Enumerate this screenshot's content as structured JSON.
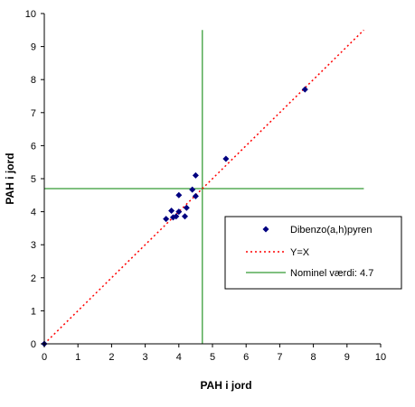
{
  "chart_data": {
    "type": "scatter",
    "title": "",
    "xlabel": "PAH i jord",
    "ylabel": "PAH i jord",
    "xlim": [
      0,
      10
    ],
    "ylim": [
      0,
      10
    ],
    "xticks": [
      "0",
      "1",
      "2",
      "3",
      "4",
      "5",
      "6",
      "7",
      "8",
      "9",
      "10"
    ],
    "yticks": [
      "0",
      "1",
      "2",
      "3",
      "4",
      "5",
      "6",
      "7",
      "8",
      "9",
      "10"
    ],
    "grid": false,
    "legend_position": "right",
    "series": [
      {
        "name": "Dibenzo(a,h)pyren",
        "kind": "points",
        "color": "#000080",
        "marker": "diamond",
        "points": [
          [
            0.0,
            0.0
          ],
          [
            3.62,
            3.78
          ],
          [
            3.78,
            4.03
          ],
          [
            3.83,
            3.83
          ],
          [
            3.92,
            3.86
          ],
          [
            4.0,
            4.5
          ],
          [
            4.0,
            4.0
          ],
          [
            4.18,
            3.86
          ],
          [
            4.23,
            4.12
          ],
          [
            4.4,
            4.67
          ],
          [
            4.5,
            5.1
          ],
          [
            4.5,
            4.47
          ],
          [
            5.4,
            5.6
          ],
          [
            7.75,
            7.7
          ]
        ]
      },
      {
        "name": "Y=X",
        "kind": "line",
        "style": "dotted",
        "color": "#ff0000",
        "points": [
          [
            0,
            0
          ],
          [
            9.5,
            9.5
          ]
        ]
      },
      {
        "name": "Nominel værdi:  4.7",
        "kind": "crosshair",
        "color": "#008000",
        "value": 4.7,
        "xrange": [
          0,
          9.5
        ],
        "yrange": [
          0,
          9.5
        ]
      }
    ]
  }
}
